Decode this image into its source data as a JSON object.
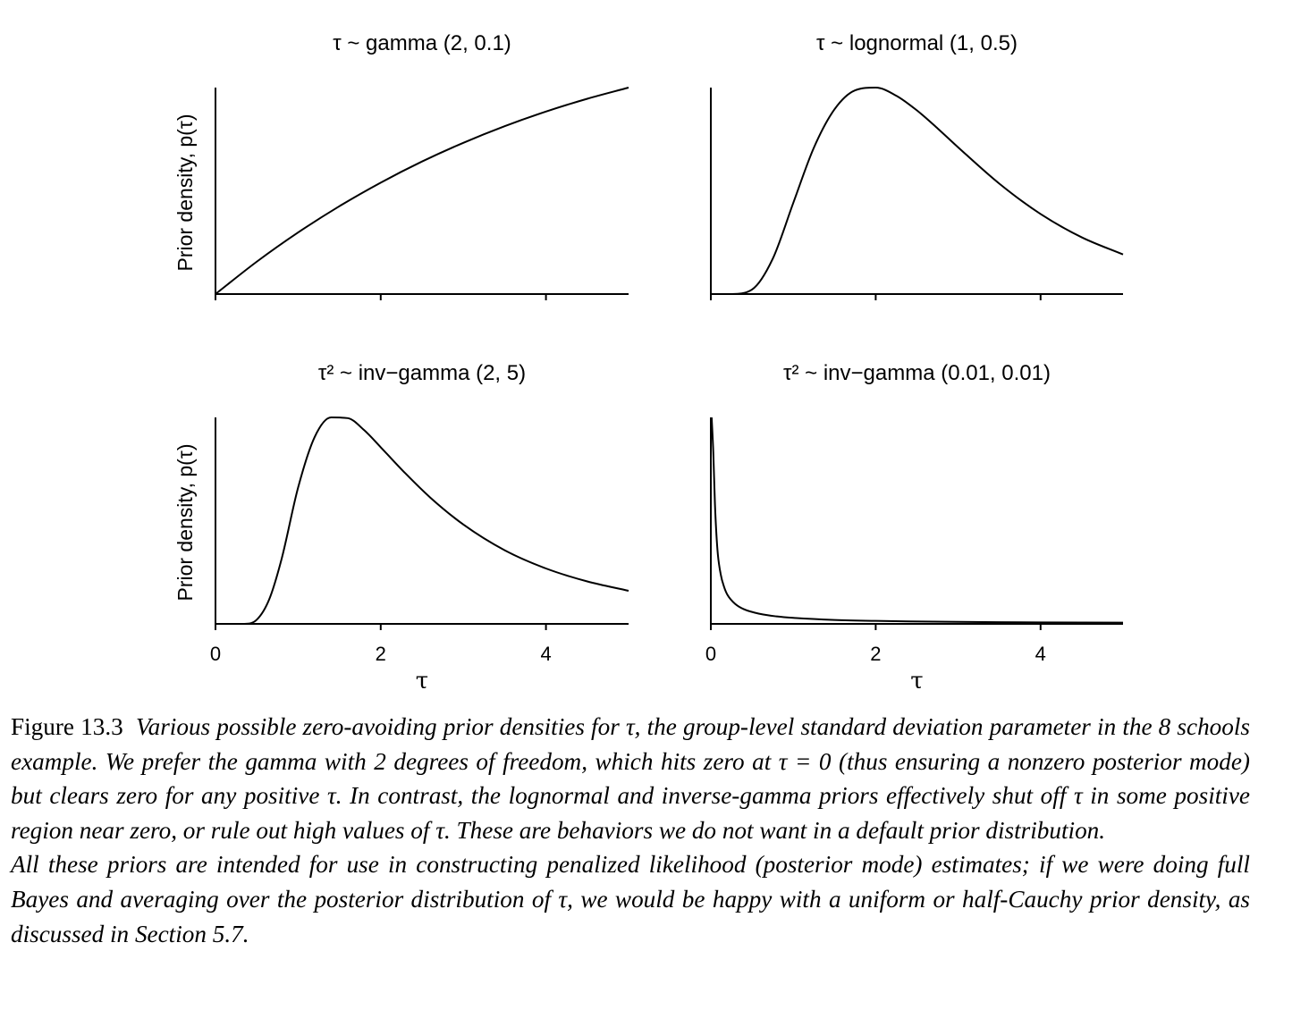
{
  "chart_data": [
    {
      "type": "line",
      "title": "τ ~ gamma (2, 0.1)",
      "ylabel": "Prior density, p(τ)",
      "xlabel": "",
      "xlim": [
        0,
        5
      ],
      "xticks": [
        0,
        2,
        4
      ],
      "xtick_labels": [
        "",
        "",
        ""
      ],
      "show_yticks": false,
      "series": [
        {
          "x": [
            0,
            0.5,
            1,
            1.5,
            2,
            2.5,
            3,
            3.5,
            4,
            4.5,
            5
          ],
          "y": [
            0,
            0.0476,
            0.0905,
            0.1291,
            0.1637,
            0.1947,
            0.2222,
            0.2466,
            0.2681,
            0.2869,
            0.3033
          ]
        }
      ]
    },
    {
      "type": "line",
      "title": "τ ~ lognormal (1, 0.5)",
      "ylabel": "",
      "xlabel": "",
      "xlim": [
        0,
        5
      ],
      "xticks": [
        0,
        2,
        4
      ],
      "xtick_labels": [
        "",
        "",
        ""
      ],
      "show_yticks": false,
      "series": [
        {
          "x": [
            0,
            0.25,
            0.5,
            0.75,
            1,
            1.25,
            1.5,
            1.75,
            2,
            2.25,
            2.5,
            2.75,
            3,
            3.5,
            4,
            4.5,
            5
          ],
          "y": [
            0,
            0.0001,
            0.0087,
            0.0673,
            0.1747,
            0.2806,
            0.3541,
            0.3905,
            0.3958,
            0.3802,
            0.3521,
            0.3177,
            0.2813,
            0.2116,
            0.1534,
            0.1087,
            0.0759
          ]
        }
      ]
    },
    {
      "type": "line",
      "title": "τ² ~ inv−gamma (2, 5)",
      "ylabel": "Prior density, p(τ)",
      "xlabel": "τ",
      "xlim": [
        0,
        5
      ],
      "xticks": [
        0,
        2,
        4
      ],
      "xtick_labels": [
        "0",
        "2",
        "4"
      ],
      "show_yticks": false,
      "series": [
        {
          "x": [
            0,
            0.2,
            0.35,
            0.5,
            0.65,
            0.8,
            1,
            1.2,
            1.4,
            1.6,
            1.8,
            2,
            2.3,
            2.6,
            3,
            3.5,
            4,
            4.5,
            5
          ],
          "y": [
            0,
            0,
            0.0001,
            0.0154,
            0.0906,
            0.2403,
            0.5054,
            0.6926,
            0.7656,
            0.7629,
            0.7182,
            0.6549,
            0.5577,
            0.4683,
            0.3685,
            0.2731,
            0.2055,
            0.1574,
            0.1227
          ]
        }
      ]
    },
    {
      "type": "line",
      "title": "τ² ~ inv−gamma (0.01, 0.01)",
      "ylabel": "",
      "xlabel": "τ",
      "xlim": [
        0,
        5
      ],
      "xticks": [
        0,
        2,
        4
      ],
      "xtick_labels": [
        "0",
        "2",
        "4"
      ],
      "show_yticks": false,
      "series": [
        {
          "x": [
            0.01,
            0.03,
            0.05,
            0.08,
            0.12,
            0.16,
            0.2,
            0.3,
            0.4,
            0.6,
            0.8,
            1,
            1.5,
            2,
            3,
            4,
            5
          ],
          "y": [
            1.0,
            0.83,
            0.58,
            0.36,
            0.24,
            0.18,
            0.142,
            0.095,
            0.071,
            0.048,
            0.036,
            0.029,
            0.019,
            0.0144,
            0.0096,
            0.0072,
            0.0058
          ]
        }
      ]
    }
  ],
  "caption": {
    "label": "Figure 13.3",
    "paragraph1": "Various possible zero-avoiding prior densities for τ, the group-level standard deviation parameter in the 8 schools example. We prefer the gamma with 2 degrees of freedom, which hits zero at τ = 0 (thus ensuring a nonzero posterior mode) but clears zero for any positive τ. In contrast, the lognormal and inverse-gamma priors effectively shut off τ in some positive region near zero, or rule out high values of τ. These are behaviors we do not want in a default prior distribution.",
    "paragraph2": "All these priors are intended for use in constructing penalized likelihood (posterior mode) estimates; if we were doing full Bayes and averaging over the posterior distribution of τ, we would be happy with a uniform or half-Cauchy prior density, as discussed in Section 5.7."
  }
}
